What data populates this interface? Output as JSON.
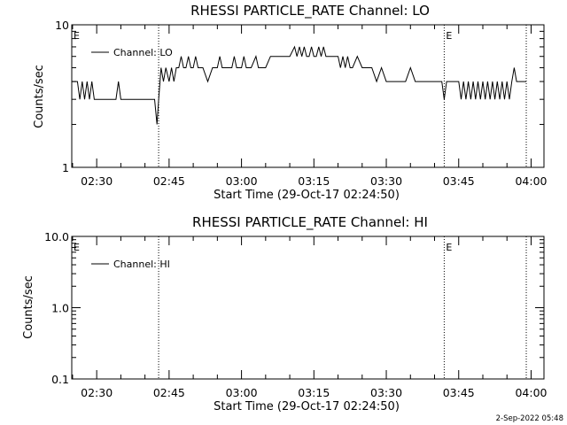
{
  "chart_data": [
    {
      "type": "line",
      "title": "RHESSI PARTICLE_RATE Channel: LO",
      "xlabel": "Start Time (29-Oct-17 02:24:50)",
      "ylabel": "Counts/sec",
      "yscale": "log",
      "ylim": [
        1,
        10
      ],
      "y_ticks": [
        "1",
        "10"
      ],
      "x_ticks": [
        "02:30",
        "02:45",
        "03:00",
        "03:15",
        "03:30",
        "03:45",
        "04:00"
      ],
      "legend": {
        "label": "Channel: LO",
        "placement": "top-left"
      },
      "markers": [
        {
          "label": "E",
          "time": "02:24:50"
        },
        {
          "label": "",
          "time": "02:42:50"
        },
        {
          "label": "E",
          "time": "03:42:00"
        },
        {
          "label": "",
          "time": "03:59:00"
        }
      ],
      "series": [
        {
          "name": "Channel: LO",
          "x": [
            "02:24:50",
            "02:26:00",
            "02:26:30",
            "02:27:00",
            "02:27:30",
            "02:28:00",
            "02:28:30",
            "02:29:00",
            "02:29:30",
            "02:30:00",
            "02:31:00",
            "02:33:00",
            "02:34:00",
            "02:34:30",
            "02:35:00",
            "02:36:00",
            "02:38:00",
            "02:40:00",
            "02:42:00",
            "02:42:30",
            "02:42:50",
            "02:43:20",
            "02:43:50",
            "02:44:20",
            "02:45:00",
            "02:45:30",
            "02:46:00",
            "02:46:30",
            "02:47:00",
            "02:47:30",
            "02:48:00",
            "02:48:30",
            "02:49:00",
            "02:49:30",
            "02:50:00",
            "02:50:30",
            "02:51:00",
            "02:51:30",
            "02:52:00",
            "02:53:00",
            "02:54:00",
            "02:55:00",
            "02:55:30",
            "02:56:00",
            "02:57:00",
            "02:58:00",
            "02:58:30",
            "02:59:00",
            "03:00:00",
            "03:00:30",
            "03:01:00",
            "03:02:00",
            "03:03:00",
            "03:03:30",
            "03:04:00",
            "03:05:00",
            "03:06:00",
            "03:07:00",
            "03:08:00",
            "03:09:00",
            "03:10:00",
            "03:11:00",
            "03:11:30",
            "03:12:00",
            "03:12:30",
            "03:13:00",
            "03:13:30",
            "03:14:00",
            "03:14:30",
            "03:15:00",
            "03:15:30",
            "03:16:00",
            "03:16:30",
            "03:17:00",
            "03:17:30",
            "03:18:00",
            "03:19:00",
            "03:20:00",
            "03:20:30",
            "03:21:00",
            "03:21:30",
            "03:22:00",
            "03:22:30",
            "03:23:00",
            "03:24:00",
            "03:25:00",
            "03:26:00",
            "03:27:00",
            "03:28:00",
            "03:29:00",
            "03:30:00",
            "03:31:00",
            "03:32:00",
            "03:33:00",
            "03:34:00",
            "03:35:00",
            "03:36:00",
            "03:37:00",
            "03:38:00",
            "03:39:00",
            "03:40:00",
            "03:41:00",
            "03:41:30",
            "03:42:00",
            "03:42:30",
            "03:43:00",
            "03:44:00",
            "03:45:00",
            "03:45:30",
            "03:46:00",
            "03:46:30",
            "03:47:00",
            "03:47:30",
            "03:48:00",
            "03:48:30",
            "03:49:00",
            "03:49:30",
            "03:50:00",
            "03:50:30",
            "03:51:00",
            "03:51:30",
            "03:52:00",
            "03:52:30",
            "03:53:00",
            "03:53:30",
            "03:54:00",
            "03:54:30",
            "03:55:00",
            "03:55:30",
            "03:56:00",
            "03:56:30",
            "03:57:00",
            "03:57:30",
            "03:58:00",
            "03:59:00"
          ],
          "values": [
            4,
            4,
            3,
            4,
            3,
            4,
            3,
            4,
            3,
            3,
            3,
            3,
            3,
            4,
            3,
            3,
            3,
            3,
            3,
            2,
            3,
            5,
            4,
            5,
            4,
            5,
            4,
            5,
            5,
            6,
            5,
            5,
            6,
            5,
            5,
            6,
            5,
            5,
            5,
            4,
            5,
            5,
            6,
            5,
            5,
            5,
            6,
            5,
            5,
            6,
            5,
            5,
            6,
            5,
            5,
            5,
            6,
            6,
            6,
            6,
            6,
            7,
            6,
            7,
            6,
            7,
            6,
            6,
            7,
            6,
            6,
            7,
            6,
            7,
            6,
            6,
            6,
            6,
            5,
            6,
            5,
            6,
            5,
            5,
            6,
            5,
            5,
            5,
            4,
            5,
            4,
            4,
            4,
            4,
            4,
            5,
            4,
            4,
            4,
            4,
            4,
            4,
            4,
            3,
            4,
            4,
            4,
            4,
            3,
            4,
            3,
            4,
            3,
            4,
            3,
            4,
            3,
            4,
            3,
            4,
            3,
            4,
            3,
            4,
            3,
            4,
            3,
            4,
            3,
            4,
            5,
            4,
            4,
            4,
            4
          ]
        }
      ]
    },
    {
      "type": "line",
      "title": "RHESSI PARTICLE_RATE Channel: HI",
      "xlabel": "Start Time (29-Oct-17 02:24:50)",
      "ylabel": "Counts/sec",
      "yscale": "log",
      "ylim": [
        0.1,
        10
      ],
      "y_ticks": [
        "0.1",
        "1.0",
        "10.0"
      ],
      "x_ticks": [
        "02:30",
        "02:45",
        "03:00",
        "03:15",
        "03:30",
        "03:45",
        "04:00"
      ],
      "legend": {
        "label": "Channel: HI",
        "placement": "top-left"
      },
      "markers": [
        {
          "label": "E",
          "time": "02:24:50"
        },
        {
          "label": "",
          "time": "02:42:50"
        },
        {
          "label": "E",
          "time": "03:42:00"
        },
        {
          "label": "",
          "time": "03:59:00"
        }
      ],
      "series": [
        {
          "name": "Channel: HI",
          "x": [],
          "values": []
        }
      ]
    }
  ],
  "footer": {
    "timestamp": "2-Sep-2022 05:48"
  }
}
